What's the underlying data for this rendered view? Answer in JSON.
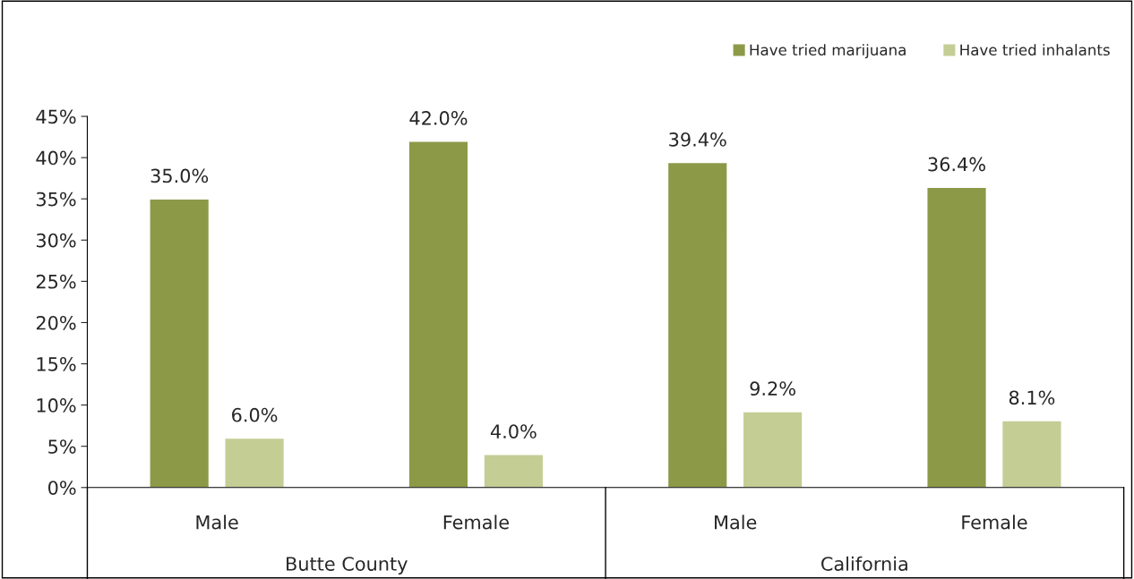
{
  "chart_data": {
    "type": "bar",
    "categories": [
      "Male",
      "Female",
      "Male",
      "Female"
    ],
    "series": [
      {
        "name": "Have tried marijuana",
        "color": "#8c9a48",
        "values": [
          35.0,
          42.0,
          39.4,
          36.4
        ],
        "value_labels": [
          "35.0%",
          "42.0%",
          "39.4%",
          "36.4%"
        ]
      },
      {
        "name": "Have tried inhalants",
        "color": "#c4cd94",
        "values": [
          6.0,
          4.0,
          9.2,
          8.1
        ],
        "value_labels": [
          "6.0%",
          "4.0%",
          "9.2%",
          "8.1%"
        ]
      }
    ],
    "annotations": [
      "Butte County",
      "California"
    ],
    "ylim": [
      0,
      45
    ],
    "yticks": [
      {
        "value": 0,
        "label": "0%"
      },
      {
        "value": 5,
        "label": "5%"
      },
      {
        "value": 10,
        "label": "10%"
      },
      {
        "value": 15,
        "label": "15%"
      },
      {
        "value": 20,
        "label": "20%"
      },
      {
        "value": 25,
        "label": "25%"
      },
      {
        "value": 30,
        "label": "30%"
      },
      {
        "value": 35,
        "label": "35%"
      },
      {
        "value": 40,
        "label": "40%"
      },
      {
        "value": 45,
        "label": "45%"
      }
    ],
    "grid": false,
    "legend": "top right"
  }
}
